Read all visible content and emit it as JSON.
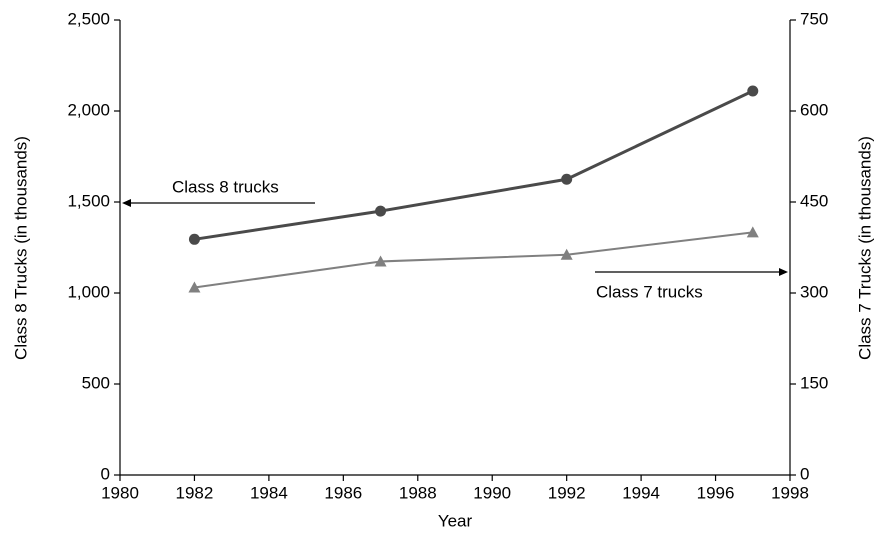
{
  "chart_data": {
    "type": "line",
    "xlabel": "Year",
    "ylabel": "Class 8 Trucks (in thousands)",
    "y2label": "Class 7 Trucks (in thousands)",
    "x": [
      1982,
      1987,
      1992,
      1997
    ],
    "series": [
      {
        "name": "Class 8 trucks",
        "color": "#4a4a4a",
        "marker": "circle",
        "values": [
          1295,
          1450,
          1625,
          2110
        ]
      },
      {
        "name": "Class 7 trucks",
        "color": "#808080",
        "marker": "triangle",
        "axis": "y2",
        "values": [
          309,
          352,
          363,
          400
        ]
      }
    ],
    "xlim": [
      1980,
      1998
    ],
    "xticks": [
      1980,
      1982,
      1984,
      1986,
      1988,
      1990,
      1992,
      1994,
      1996,
      1998
    ],
    "ylim": [
      0,
      2500
    ],
    "yticks": [
      0,
      500,
      {
        "value": 1000,
        "label": "1,000"
      },
      {
        "value": 1500,
        "label": "1,500"
      },
      {
        "value": 2000,
        "label": "2,000"
      },
      {
        "value": 2500,
        "label": "2,500"
      }
    ],
    "y2lim": [
      0,
      750
    ],
    "y2ticks": [
      0,
      150,
      300,
      450,
      600,
      750
    ]
  }
}
